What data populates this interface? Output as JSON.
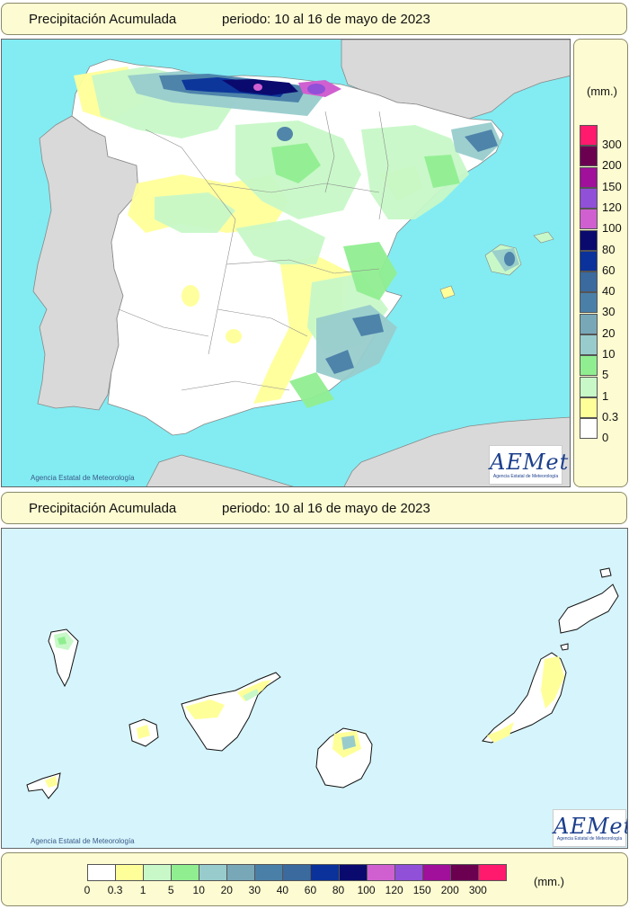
{
  "peninsula": {
    "title": "Precipitación Acumulada",
    "period": "periodo: 10 al 16 de mayo de 2023",
    "credit": "Agencia Estatal de Meteorología",
    "logo": "AEMet",
    "logo_sub": "Agencia Estatal de Meteorología"
  },
  "canarias": {
    "title": "Precipitación Acumulada",
    "period": "periodo: 10 al 16 de mayo de 2023",
    "credit": "Agencia Estatal de Meteorología",
    "logo": "AEMet",
    "logo_sub": "Agencia Estatal de Meteorología"
  },
  "legend": {
    "unit": "(mm.)",
    "classes": [
      {
        "label": "300",
        "color": "#ff1a6e"
      },
      {
        "label": "200",
        "color": "#6b0050"
      },
      {
        "label": "150",
        "color": "#a0109a"
      },
      {
        "label": "120",
        "color": "#9050d8"
      },
      {
        "label": "100",
        "color": "#d060d0"
      },
      {
        "label": "80",
        "color": "#0a0a6e"
      },
      {
        "label": "60",
        "color": "#0a329a"
      },
      {
        "label": "40",
        "color": "#3a6a9e"
      },
      {
        "label": "30",
        "color": "#4a80a8"
      },
      {
        "label": "20",
        "color": "#78a8b8"
      },
      {
        "label": "10",
        "color": "#98cccc"
      },
      {
        "label": "5",
        "color": "#90ee90"
      },
      {
        "label": "1",
        "color": "#c8f8c8"
      },
      {
        "label": "0.3",
        "color": "#ffff99"
      },
      {
        "label": "0",
        "color": "#ffffff"
      }
    ],
    "bottom_labels": [
      "0",
      "0.3",
      "1",
      "5",
      "10",
      "20",
      "30",
      "40",
      "60",
      "80",
      "100",
      "120",
      "150",
      "200",
      "300"
    ]
  },
  "colors": {
    "sea": "#82ecf2",
    "sea_canarias": "#d6f4fb",
    "foreign_land": "#d9d9d9",
    "panel": "#fdfbd1"
  }
}
